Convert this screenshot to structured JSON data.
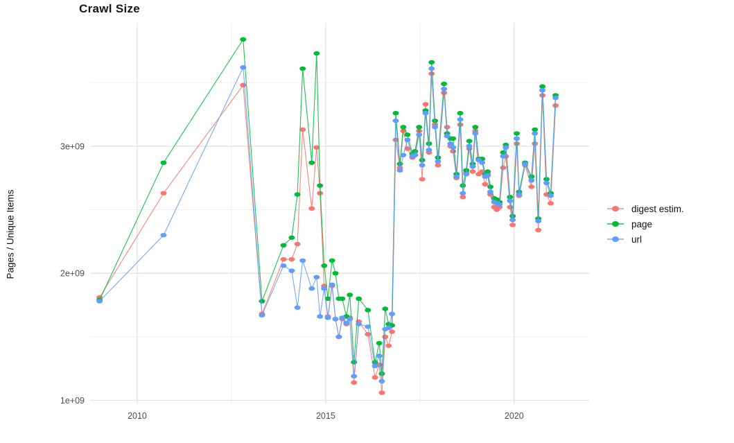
{
  "title": "Crawl Size",
  "y_axis_label": "Pages / Unique Items",
  "legend": {
    "position": "right",
    "items": [
      {
        "label": "digest estim.",
        "color": "#F8766D"
      },
      {
        "label": "page",
        "color": "#00BA38"
      },
      {
        "label": "url",
        "color": "#619CFF"
      }
    ]
  },
  "chart_data": {
    "type": "line",
    "title": "Crawl Size",
    "xlabel": "",
    "ylabel": "Pages / Unique Items",
    "grid": true,
    "legend_position": "right",
    "xlim": [
      2008.75,
      2021.99
    ],
    "ylim_e9": [
      0.97,
      3.97
    ],
    "x_ticks": [
      {
        "v": 2010,
        "label": "2010"
      },
      {
        "v": 2015,
        "label": "2015"
      },
      {
        "v": 2020,
        "label": "2020"
      }
    ],
    "x_minor": [
      2012.5,
      2017.5
    ],
    "y_ticks": [
      {
        "v": 1,
        "label": "1e+09"
      },
      {
        "v": 2,
        "label": "2e+09"
      },
      {
        "v": 3,
        "label": "3e+09"
      }
    ],
    "y_minor_e9": [
      1.5,
      2.5,
      3.5
    ],
    "x": [
      2009.0,
      2010.7,
      2012.81,
      2013.31,
      2013.88,
      2014.1,
      2014.25,
      2014.39,
      2014.63,
      2014.76,
      2014.85,
      2014.96,
      2015.06,
      2015.17,
      2015.26,
      2015.35,
      2015.44,
      2015.55,
      2015.64,
      2015.75,
      2015.88,
      2016.12,
      2016.31,
      2016.42,
      2016.49,
      2016.58,
      2016.67,
      2016.76,
      2016.86,
      2016.97,
      2017.06,
      2017.17,
      2017.3,
      2017.37,
      2017.48,
      2017.56,
      2017.65,
      2017.74,
      2017.81,
      2017.9,
      2017.98,
      2018.14,
      2018.22,
      2018.31,
      2018.38,
      2018.47,
      2018.57,
      2018.64,
      2018.73,
      2018.81,
      2018.9,
      2018.97,
      2019.06,
      2019.15,
      2019.23,
      2019.3,
      2019.37,
      2019.47,
      2019.54,
      2019.61,
      2019.71,
      2019.78,
      2019.89,
      2019.96,
      2020.07,
      2020.13,
      2020.29,
      2020.46,
      2020.55,
      2020.64,
      2020.75,
      2020.86,
      2020.97,
      2021.1
    ],
    "series": [
      {
        "name": "digest estim.",
        "color": "#F8766D",
        "values_e9": [
          1.81,
          2.63,
          3.48,
          1.68,
          2.11,
          2.11,
          2.23,
          3.13,
          2.51,
          2.99,
          2.63,
          1.9,
          1.66,
          1.9,
          1.64,
          1.5,
          1.64,
          1.6,
          1.65,
          1.14,
          1.62,
          1.52,
          1.18,
          1.28,
          1.06,
          1.5,
          1.43,
          1.54,
          3.05,
          2.83,
          3.12,
          2.98,
          2.91,
          2.93,
          3.12,
          2.74,
          3.33,
          2.95,
          3.57,
          3.17,
          2.85,
          3.42,
          3.15,
          3.0,
          2.96,
          2.75,
          3.17,
          2.6,
          2.79,
          2.98,
          2.8,
          3.12,
          2.78,
          2.8,
          2.7,
          2.78,
          2.62,
          2.52,
          2.5,
          2.52,
          2.83,
          2.92,
          2.52,
          2.38,
          3.02,
          2.61,
          2.85,
          2.68,
          3.02,
          2.34,
          3.4,
          2.62,
          2.55,
          3.32
        ]
      },
      {
        "name": "page",
        "color": "#00BA38",
        "values_e9": [
          1.79,
          2.87,
          3.84,
          1.78,
          2.22,
          2.28,
          2.62,
          3.61,
          2.87,
          3.73,
          2.69,
          2.06,
          1.8,
          2.1,
          2.0,
          1.8,
          1.8,
          1.66,
          1.83,
          1.3,
          1.8,
          1.71,
          1.3,
          1.45,
          1.21,
          1.72,
          1.6,
          1.59,
          3.26,
          2.86,
          3.15,
          3.09,
          2.94,
          2.96,
          3.15,
          2.89,
          3.28,
          3.02,
          3.66,
          3.2,
          2.91,
          3.49,
          3.1,
          3.06,
          3.06,
          2.78,
          3.26,
          2.69,
          2.81,
          3.04,
          2.86,
          3.15,
          2.9,
          2.9,
          2.78,
          2.8,
          2.68,
          2.59,
          2.58,
          2.56,
          2.95,
          3.01,
          2.6,
          2.45,
          3.1,
          2.64,
          2.87,
          2.76,
          3.13,
          2.43,
          3.47,
          2.74,
          2.63,
          3.4
        ]
      },
      {
        "name": "url",
        "color": "#619CFF",
        "values_e9": [
          1.78,
          2.3,
          3.62,
          1.67,
          2.06,
          2.02,
          1.73,
          2.1,
          1.88,
          1.97,
          1.66,
          1.88,
          1.65,
          1.91,
          1.64,
          1.5,
          1.65,
          1.61,
          1.64,
          1.19,
          1.6,
          1.58,
          1.27,
          1.35,
          1.15,
          1.56,
          1.57,
          1.68,
          3.2,
          2.81,
          2.93,
          3.05,
          2.92,
          2.93,
          3.09,
          2.85,
          3.26,
          2.97,
          3.61,
          3.15,
          2.88,
          3.45,
          3.08,
          3.02,
          2.99,
          2.76,
          3.21,
          2.63,
          2.78,
          3.0,
          2.84,
          3.1,
          2.89,
          2.87,
          2.76,
          2.77,
          2.64,
          2.56,
          2.55,
          2.54,
          2.92,
          2.99,
          2.57,
          2.42,
          3.06,
          2.62,
          2.86,
          2.73,
          3.1,
          2.41,
          3.44,
          2.71,
          2.61,
          3.38
        ]
      }
    ]
  },
  "style": {
    "grid_major_color": "#e3e3e3",
    "grid_minor_color": "#f0f0f0",
    "tick_label_color": "#4d4d4d"
  }
}
